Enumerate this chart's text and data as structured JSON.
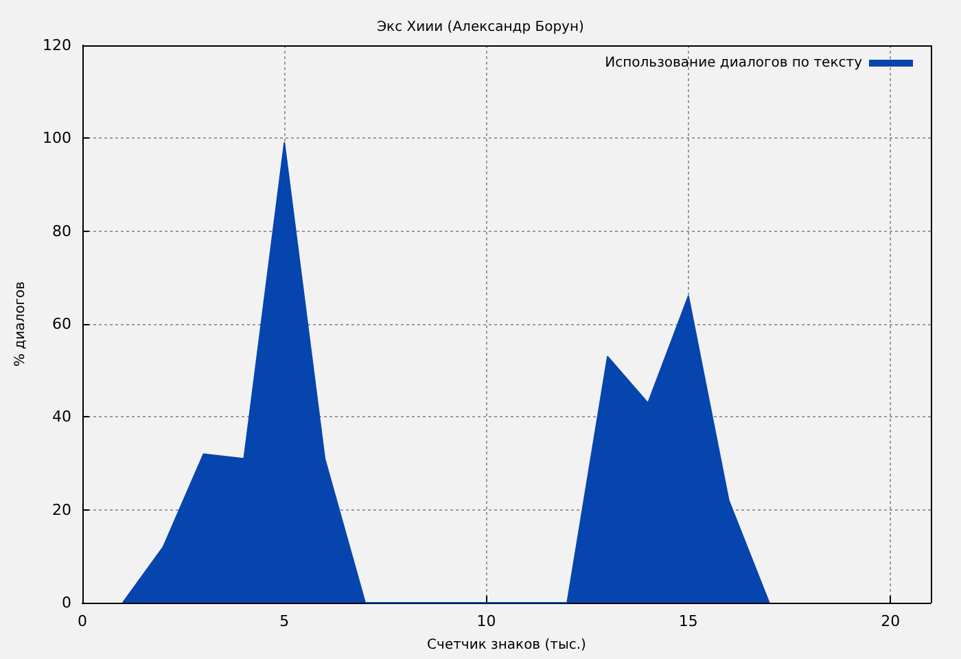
{
  "chart_data": {
    "type": "area",
    "title": "Экс Хиии (Александр Борун)",
    "xlabel": "Счетчик знаков (тыс.)",
    "ylabel": "% диалогов",
    "x": [
      1,
      2,
      3,
      4,
      5,
      6,
      7,
      8,
      9,
      10,
      11,
      12,
      13,
      14,
      15,
      16,
      17
    ],
    "series": [
      {
        "name": "Использование диалогов по тексту",
        "color": "#0645ad",
        "values": [
          0,
          12,
          32,
          31,
          99,
          31,
          0,
          0,
          0,
          0,
          0,
          0,
          53,
          43,
          66,
          22,
          0
        ]
      }
    ],
    "xlim": [
      0,
      21
    ],
    "xticks": [
      0,
      5,
      10,
      15,
      20
    ],
    "ylim": [
      0,
      120
    ],
    "yticks": [
      0,
      20,
      40,
      60,
      80,
      100,
      120
    ],
    "grid": true,
    "legend": "top right",
    "marker": "none"
  }
}
